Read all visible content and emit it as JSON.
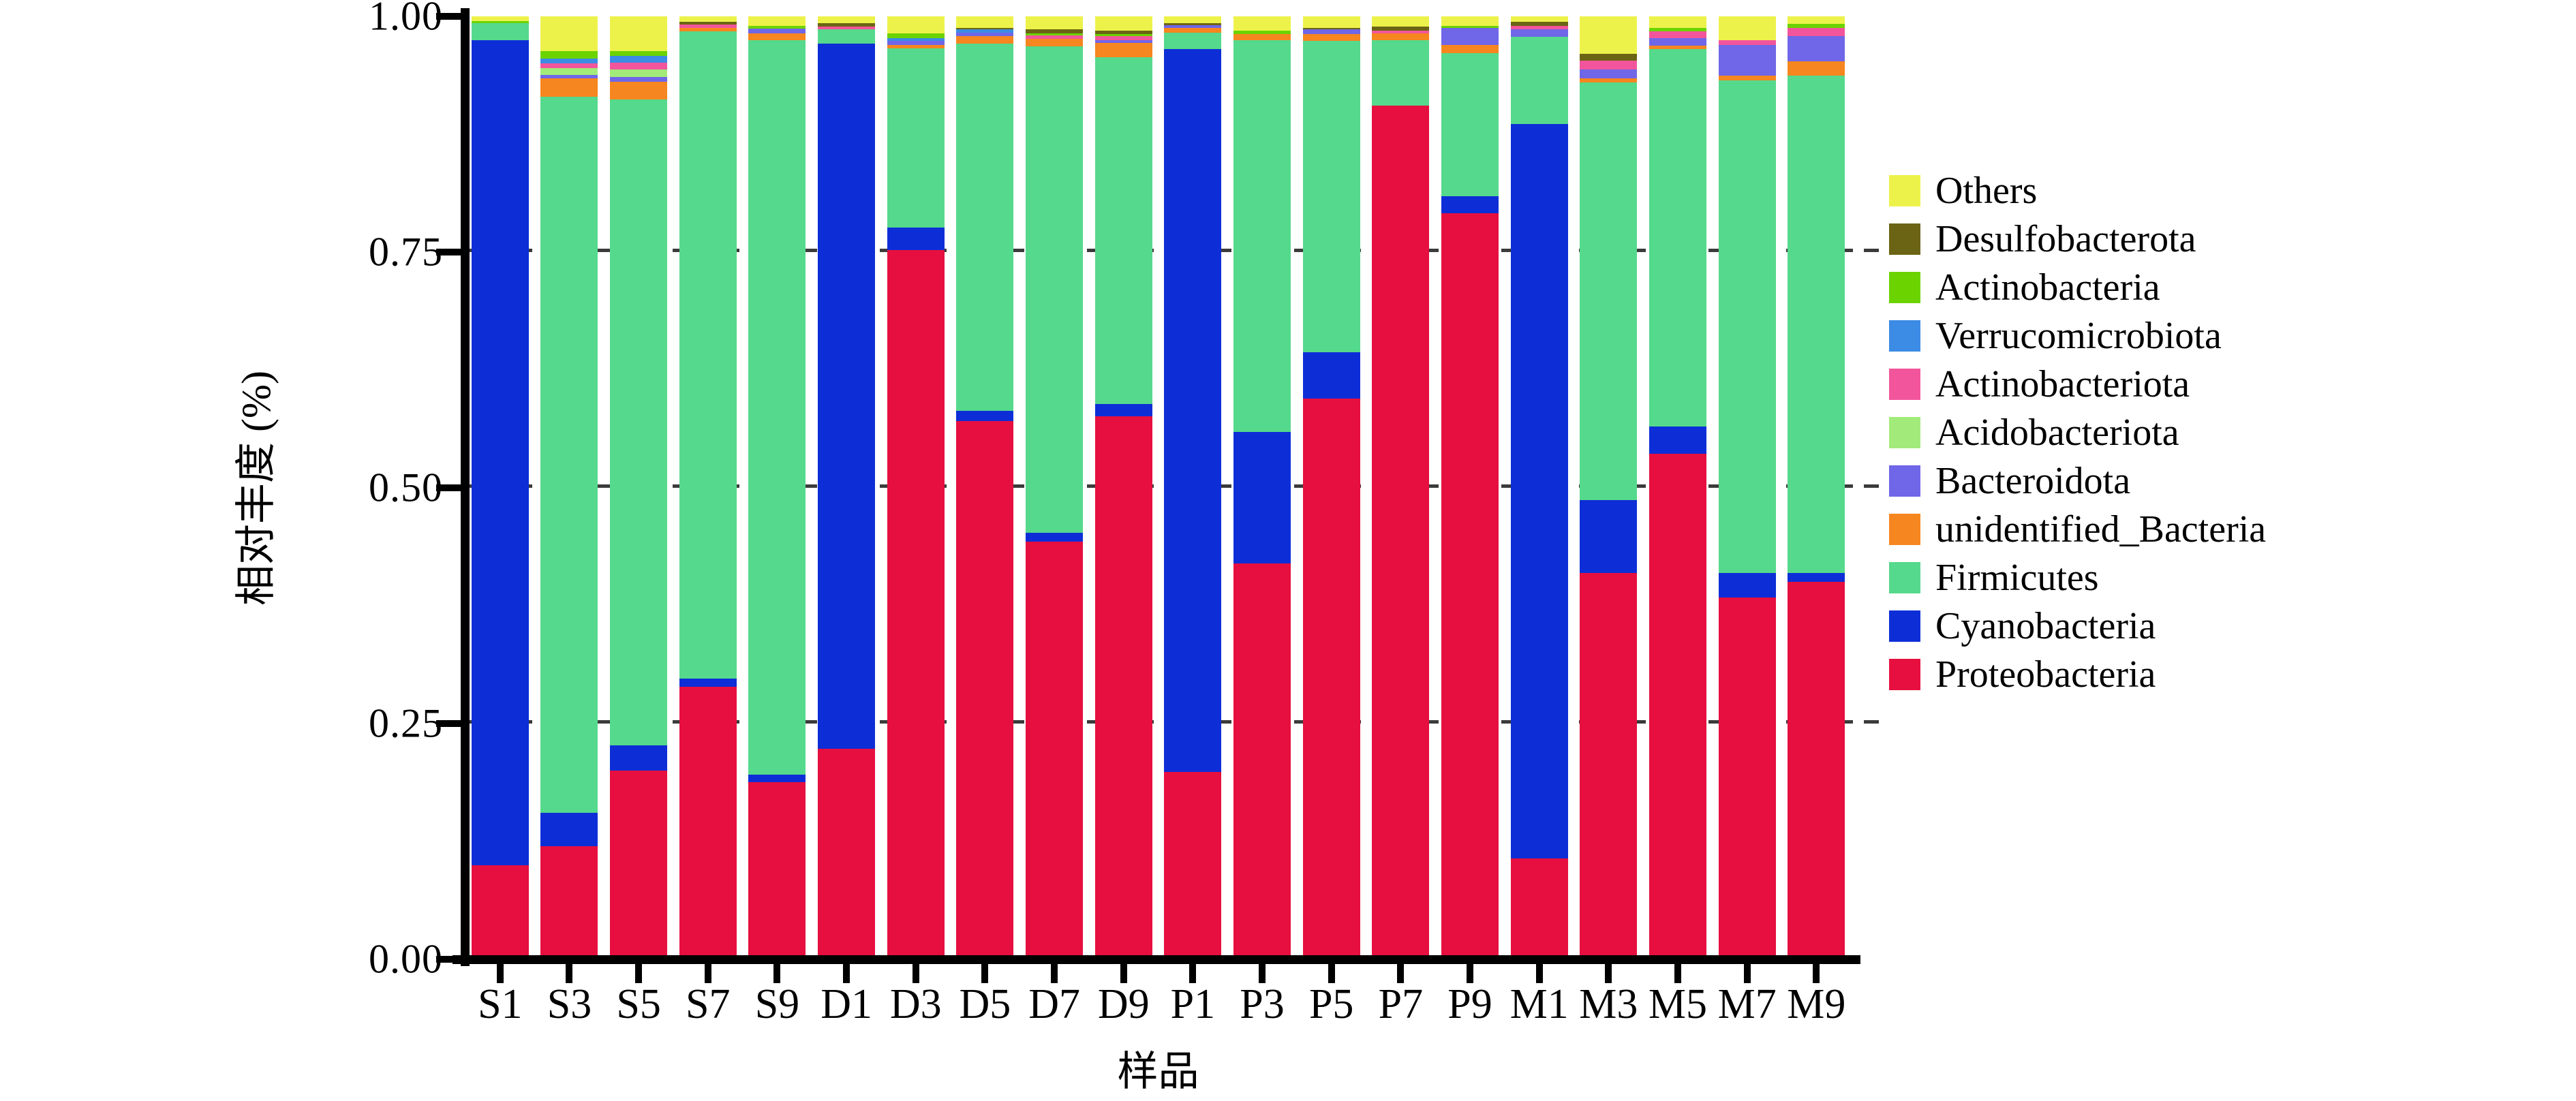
{
  "chart_data": {
    "type": "bar",
    "stacked": true,
    "title": "",
    "ylabel": "相对丰度 (%)",
    "xlabel": "样品",
    "ylim": [
      0,
      1
    ],
    "grid": "horizontal dashed lines at 0.25 / 0.50 / 0.75",
    "gridlines": [
      0.25,
      0.5,
      0.75
    ],
    "legend_position": "right",
    "y_ticks": [
      {
        "label": "0.00",
        "value": 0
      },
      {
        "label": "0.25",
        "value": 0.25
      },
      {
        "label": "0.50",
        "value": 0.5
      },
      {
        "label": "0.75",
        "value": 0.75
      },
      {
        "label": "1.00",
        "value": 1
      }
    ],
    "categories": [
      "S1",
      "S3",
      "S5",
      "S7",
      "S9",
      "D1",
      "D3",
      "D5",
      "D7",
      "D9",
      "P1",
      "P3",
      "P5",
      "P7",
      "P9",
      "M1",
      "M3",
      "M5",
      "M7",
      "M9"
    ],
    "series_note": "series listed in legend order (top to bottom); bars stack bottom-to-top in reverse order, Proteobacteria at the bottom",
    "series": [
      {
        "name": "Others",
        "color": "#EDF24B",
        "values": [
          0.005,
          0.037,
          0.037,
          0.006,
          0.01,
          0.007,
          0.018,
          0.012,
          0.014,
          0.015,
          0.007,
          0.015,
          0.012,
          0.011,
          0.01,
          0.006,
          0.04,
          0.012,
          0.025,
          0.008
        ]
      },
      {
        "name": "Desulfobacterota",
        "color": "#6B6414",
        "values": [
          0.0,
          0.0,
          0.0,
          0.003,
          0.0,
          0.004,
          0.0,
          0.002,
          0.004,
          0.004,
          0.002,
          0.0,
          0.002,
          0.004,
          0.0,
          0.004,
          0.007,
          0.0,
          0.0,
          0.0
        ]
      },
      {
        "name": "Actinobacteria",
        "color": "#6BD300",
        "values": [
          0.002,
          0.008,
          0.005,
          0.0,
          0.003,
          0.0,
          0.005,
          0.0,
          0.002,
          0.002,
          0.0,
          0.004,
          0.0,
          0.0,
          0.002,
          0.0,
          0.0,
          0.004,
          0.0,
          0.004
        ]
      },
      {
        "name": "Verrucomicrobiota",
        "color": "#3C8BE4",
        "values": [
          0.0,
          0.005,
          0.007,
          0.0,
          0.0,
          0.0,
          0.003,
          0.003,
          0.0,
          0.0,
          0.0,
          0.0,
          0.0,
          0.0,
          0.0,
          0.0,
          0.0,
          0.0,
          0.0,
          0.0
        ]
      },
      {
        "name": "Actinobacteriota",
        "color": "#F2559B",
        "values": [
          0.0,
          0.005,
          0.007,
          0.003,
          0.0,
          0.003,
          0.0,
          0.0,
          0.004,
          0.004,
          0.0,
          0.0,
          0.0,
          0.003,
          0.0,
          0.004,
          0.009,
          0.007,
          0.005,
          0.009
        ]
      },
      {
        "name": "Acidobacteriota",
        "color": "#A2EB7B",
        "values": [
          0.0,
          0.007,
          0.008,
          0.0,
          0.0,
          0.0,
          0.0,
          0.0,
          0.0,
          0.0,
          0.0,
          0.0,
          0.0,
          0.0,
          0.0,
          0.0,
          0.0,
          0.0,
          0.0,
          0.0
        ]
      },
      {
        "name": "Bacteroidota",
        "color": "#6F66E8",
        "values": [
          0.0,
          0.004,
          0.005,
          0.0,
          0.005,
          0.0,
          0.004,
          0.004,
          0.0,
          0.003,
          0.003,
          0.0,
          0.005,
          0.0,
          0.018,
          0.008,
          0.01,
          0.008,
          0.033,
          0.027
        ]
      },
      {
        "name": "unidentified_Bacteria",
        "color": "#F6861F",
        "values": [
          0.0,
          0.019,
          0.019,
          0.004,
          0.007,
          0.0,
          0.004,
          0.008,
          0.008,
          0.015,
          0.005,
          0.006,
          0.007,
          0.007,
          0.009,
          0.0,
          0.004,
          0.004,
          0.005,
          0.015
        ]
      },
      {
        "name": "Firmicutes",
        "color": "#55D98C",
        "values": [
          0.018,
          0.76,
          0.685,
          0.686,
          0.779,
          0.015,
          0.19,
          0.389,
          0.516,
          0.368,
          0.018,
          0.416,
          0.33,
          0.07,
          0.152,
          0.092,
          0.443,
          0.4,
          0.522,
          0.527
        ]
      },
      {
        "name": "Cyanobacteria",
        "color": "#0D2ED6",
        "values": [
          0.875,
          0.035,
          0.027,
          0.009,
          0.008,
          0.748,
          0.024,
          0.011,
          0.009,
          0.013,
          0.766,
          0.139,
          0.049,
          0.0,
          0.018,
          0.779,
          0.077,
          0.029,
          0.026,
          0.01
        ]
      },
      {
        "name": "Proteobacteria",
        "color": "#E60F3F",
        "values": [
          0.1,
          0.12,
          0.2,
          0.289,
          0.188,
          0.223,
          0.752,
          0.571,
          0.443,
          0.576,
          0.199,
          0.42,
          0.595,
          0.905,
          0.791,
          0.107,
          0.41,
          0.536,
          0.384,
          0.4
        ]
      }
    ]
  }
}
